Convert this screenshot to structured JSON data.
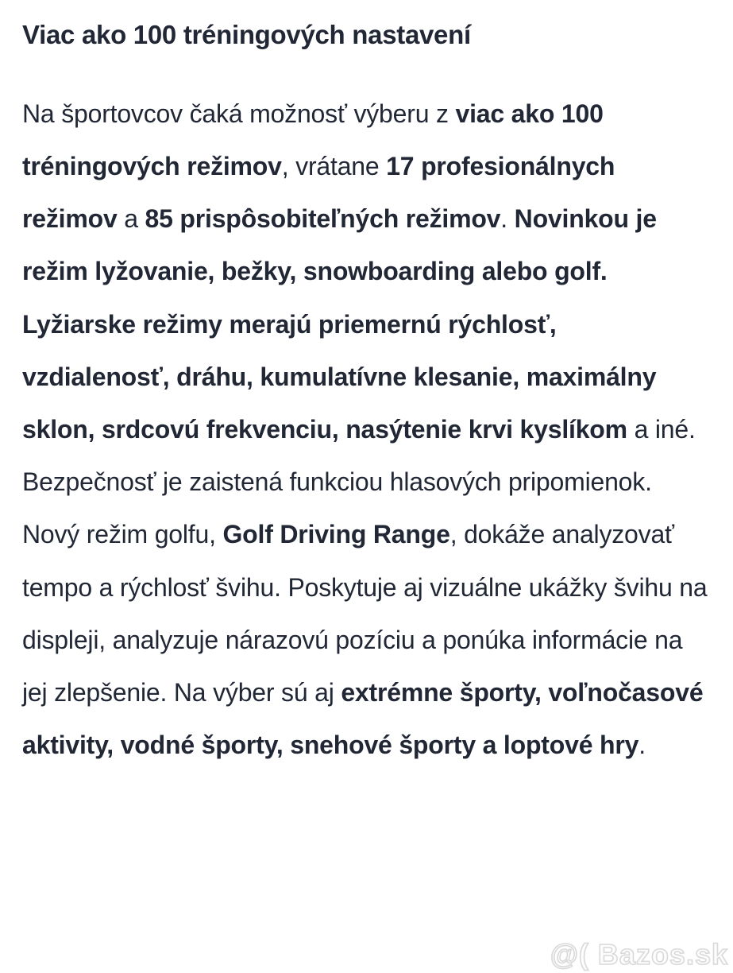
{
  "page": {
    "background_color": "#ffffff",
    "text_color": "#212735",
    "watermark_color": "#d9d9d9"
  },
  "heading": {
    "text": "Viac ako 100 tréningových nastavení"
  },
  "paragraph": {
    "segments": [
      {
        "text": "Na športovcov čaká možnosť výberu z ",
        "bold": false
      },
      {
        "text": "viac ako 100 tréningových režimov",
        "bold": true
      },
      {
        "text": ", vrátane ",
        "bold": false
      },
      {
        "text": "17 profesionálnych režimov",
        "bold": true
      },
      {
        "text": " a ",
        "bold": false
      },
      {
        "text": "85 prispôsobiteľných režimov",
        "bold": true
      },
      {
        "text": ". ",
        "bold": false
      },
      {
        "text": "Novinkou je režim lyžovanie, bežky, snowboarding alebo golf. Lyžiarske režimy merajú priemernú rýchlosť, vzdialenosť, dráhu, kumulatívne klesanie, maximálny sklon, srdcovú frekvenciu, nasýtenie krvi kyslíkom",
        "bold": true
      },
      {
        "text": " a iné. Bezpečnosť je zaistená funkciou hlasových pripomienok. Nový režim golfu, ",
        "bold": false
      },
      {
        "text": "Golf Driving Range",
        "bold": true
      },
      {
        "text": ", dokáže analyzovať tempo a rýchlosť švihu. Poskytuje aj vizuálne ukážky švihu na displeji, analyzuje nárazovú pozíciu a ponúka informácie na jej zlepšenie. Na výber sú aj ",
        "bold": false
      },
      {
        "text": "extrémne športy, voľnočasové aktivity, vodné športy, snehové športy a loptové hry",
        "bold": true
      },
      {
        "text": ".",
        "bold": false
      }
    ]
  },
  "watermark": {
    "text": "@( Bazos.sk"
  }
}
